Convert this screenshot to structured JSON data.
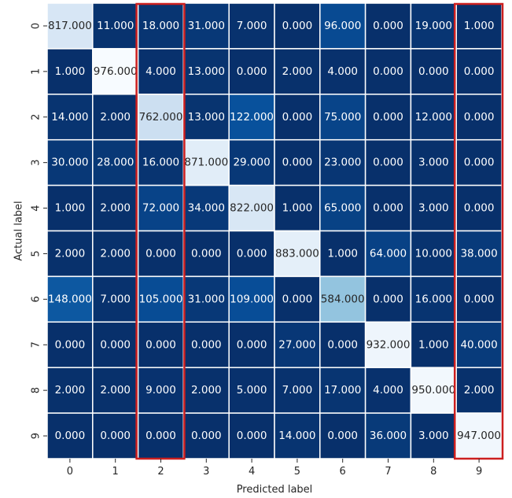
{
  "chart_data": {
    "type": "heatmap",
    "xlabel": "Predicted label",
    "ylabel": "Actual label",
    "x_categories": [
      "0",
      "1",
      "2",
      "3",
      "4",
      "5",
      "6",
      "7",
      "8",
      "9"
    ],
    "y_categories": [
      "0",
      "1",
      "2",
      "3",
      "4",
      "5",
      "6",
      "7",
      "8",
      "9"
    ],
    "values": [
      [
        817,
        11,
        18,
        31,
        7,
        0,
        96,
        0,
        19,
        1
      ],
      [
        1,
        976,
        4,
        13,
        0,
        2,
        4,
        0,
        0,
        0
      ],
      [
        14,
        2,
        762,
        13,
        122,
        0,
        75,
        0,
        12,
        0
      ],
      [
        30,
        28,
        16,
        871,
        29,
        0,
        23,
        0,
        3,
        0
      ],
      [
        1,
        2,
        72,
        34,
        822,
        1,
        65,
        0,
        3,
        0
      ],
      [
        2,
        2,
        0,
        0,
        0,
        883,
        1,
        64,
        10,
        38
      ],
      [
        148,
        7,
        105,
        31,
        109,
        0,
        584,
        0,
        16,
        0
      ],
      [
        0,
        0,
        0,
        0,
        0,
        27,
        0,
        932,
        1,
        40
      ],
      [
        2,
        2,
        9,
        2,
        5,
        7,
        17,
        4,
        950,
        2
      ],
      [
        0,
        0,
        0,
        0,
        0,
        14,
        0,
        36,
        3,
        947
      ]
    ],
    "value_format": "0.000",
    "colormap": "Blues_r",
    "value_range": [
      0,
      976
    ],
    "highlighted_columns": [
      2,
      9
    ],
    "highlight_color": "#cc1f1f",
    "grid": true,
    "colorbar": false
  }
}
